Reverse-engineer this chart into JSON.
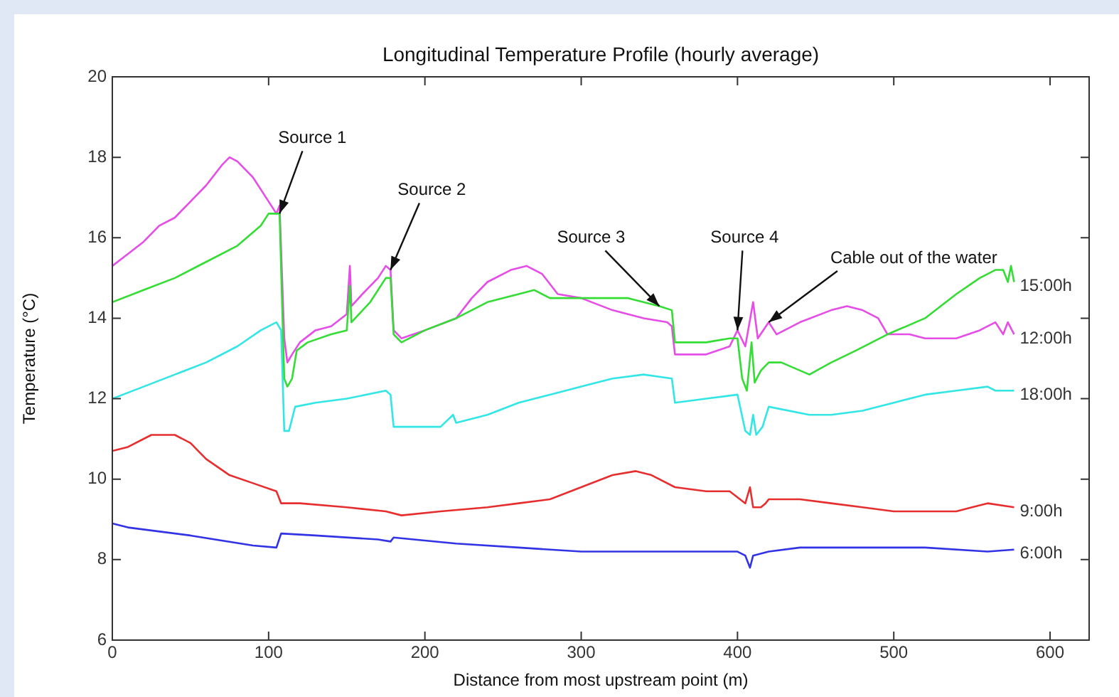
{
  "chart_data": {
    "type": "line",
    "title": "Longitudinal Temperature Profile (hourly average)",
    "xlabel": "Distance from most upstream point (m)",
    "ylabel": "Temperature (°C)",
    "xlim": [
      0,
      625
    ],
    "xticks": [
      0,
      100,
      200,
      300,
      400,
      500,
      600
    ],
    "ylim": [
      6,
      20
    ],
    "yticks": [
      6,
      8,
      10,
      12,
      14,
      16,
      18,
      20
    ],
    "grid": false,
    "legend": false,
    "marker": "none",
    "line_style": "solid",
    "series": [
      {
        "name": "15:00h",
        "color": "#33dd33",
        "x": [
          0,
          20,
          40,
          60,
          80,
          95,
          100,
          107,
          110,
          112,
          115,
          118,
          125,
          140,
          150,
          152,
          153,
          165,
          175,
          178,
          180,
          185,
          200,
          220,
          240,
          260,
          270,
          280,
          300,
          330,
          350,
          358,
          360,
          380,
          395,
          400,
          403,
          406,
          409,
          411,
          415,
          420,
          428,
          446,
          460,
          476,
          496,
          520,
          540,
          555,
          565,
          570,
          573,
          575,
          577
        ],
        "values": [
          14.4,
          14.7,
          15.0,
          15.4,
          15.8,
          16.3,
          16.6,
          16.6,
          12.5,
          12.3,
          12.5,
          13.2,
          13.4,
          13.6,
          13.7,
          14.8,
          13.9,
          14.4,
          15.0,
          15.0,
          13.6,
          13.4,
          13.7,
          14.0,
          14.4,
          14.6,
          14.7,
          14.5,
          14.5,
          14.5,
          14.3,
          14.2,
          13.4,
          13.4,
          13.5,
          13.5,
          12.5,
          12.2,
          13.4,
          12.4,
          12.7,
          12.9,
          12.9,
          12.6,
          12.9,
          13.2,
          13.6,
          14.0,
          14.6,
          15.0,
          15.2,
          15.2,
          14.9,
          15.3,
          14.9
        ]
      },
      {
        "name": "12:00h",
        "color": "#e64ce6",
        "x": [
          0,
          10,
          20,
          30,
          40,
          50,
          60,
          70,
          75,
          80,
          85,
          90,
          95,
          100,
          105,
          107,
          110,
          112,
          115,
          120,
          130,
          140,
          150,
          152,
          153,
          160,
          170,
          175,
          178,
          180,
          185,
          200,
          220,
          230,
          240,
          255,
          265,
          275,
          285,
          300,
          320,
          340,
          355,
          358,
          360,
          380,
          395,
          400,
          405,
          410,
          413,
          420,
          425,
          440,
          460,
          470,
          480,
          490,
          496,
          510,
          520,
          540,
          555,
          565,
          570,
          573,
          577
        ],
        "values": [
          15.3,
          15.6,
          15.9,
          16.3,
          16.5,
          16.9,
          17.3,
          17.8,
          18.0,
          17.9,
          17.7,
          17.5,
          17.2,
          16.9,
          16.6,
          16.8,
          13.5,
          12.9,
          13.1,
          13.4,
          13.7,
          13.8,
          14.1,
          15.3,
          14.3,
          14.6,
          15.0,
          15.3,
          15.2,
          13.7,
          13.5,
          13.7,
          14.0,
          14.5,
          14.9,
          15.2,
          15.3,
          15.1,
          14.6,
          14.5,
          14.2,
          14.0,
          13.9,
          13.8,
          13.1,
          13.1,
          13.3,
          13.7,
          13.3,
          14.4,
          13.5,
          13.9,
          13.6,
          13.9,
          14.2,
          14.3,
          14.2,
          14.0,
          13.6,
          13.6,
          13.5,
          13.5,
          13.7,
          13.9,
          13.6,
          13.9,
          13.6
        ]
      },
      {
        "name": "18:00h",
        "color": "#33e6e6",
        "x": [
          0,
          20,
          40,
          60,
          80,
          95,
          105,
          108,
          110,
          113,
          117,
          130,
          150,
          175,
          178,
          180,
          190,
          210,
          218,
          220,
          240,
          260,
          280,
          300,
          320,
          340,
          358,
          360,
          380,
          400,
          405,
          408,
          410,
          412,
          416,
          420,
          446,
          460,
          480,
          500,
          520,
          540,
          560,
          565,
          577
        ],
        "values": [
          12.0,
          12.3,
          12.6,
          12.9,
          13.3,
          13.7,
          13.9,
          13.7,
          11.2,
          11.2,
          11.8,
          11.9,
          12.0,
          12.2,
          12.1,
          11.3,
          11.3,
          11.3,
          11.6,
          11.4,
          11.6,
          11.9,
          12.1,
          12.3,
          12.5,
          12.6,
          12.5,
          11.9,
          12.0,
          12.1,
          11.2,
          11.1,
          11.6,
          11.1,
          11.3,
          11.8,
          11.6,
          11.6,
          11.7,
          11.9,
          12.1,
          12.2,
          12.3,
          12.2,
          12.2
        ]
      },
      {
        "name": "9:00h",
        "color": "#e62e2e",
        "x": [
          0,
          10,
          25,
          40,
          50,
          60,
          75,
          90,
          105,
          108,
          120,
          150,
          175,
          185,
          210,
          240,
          260,
          280,
          300,
          320,
          335,
          345,
          360,
          380,
          395,
          405,
          408,
          410,
          415,
          418,
          420,
          440,
          460,
          480,
          500,
          520,
          540,
          550,
          560,
          577
        ],
        "values": [
          10.7,
          10.8,
          11.1,
          11.1,
          10.9,
          10.5,
          10.1,
          9.9,
          9.7,
          9.4,
          9.4,
          9.3,
          9.2,
          9.1,
          9.2,
          9.3,
          9.4,
          9.5,
          9.8,
          10.1,
          10.2,
          10.1,
          9.8,
          9.7,
          9.7,
          9.4,
          9.8,
          9.3,
          9.3,
          9.4,
          9.5,
          9.5,
          9.4,
          9.3,
          9.2,
          9.2,
          9.2,
          9.3,
          9.4,
          9.3
        ]
      },
      {
        "name": "6:00h",
        "color": "#3333e6",
        "x": [
          0,
          5,
          10,
          50,
          90,
          105,
          108,
          130,
          170,
          178,
          180,
          220,
          260,
          300,
          350,
          400,
          405,
          408,
          410,
          420,
          440,
          480,
          520,
          560,
          577
        ],
        "values": [
          8.9,
          8.85,
          8.8,
          8.6,
          8.35,
          8.3,
          8.65,
          8.6,
          8.5,
          8.45,
          8.55,
          8.4,
          8.3,
          8.2,
          8.2,
          8.2,
          8.1,
          7.8,
          8.1,
          8.2,
          8.3,
          8.3,
          8.3,
          8.2,
          8.25
        ]
      }
    ],
    "annotations": [
      {
        "text": "Source 1",
        "x": 107,
        "y": 16.6
      },
      {
        "text": "Source 2",
        "x": 178,
        "y": 15.2
      },
      {
        "text": "Source 3",
        "x": 350,
        "y": 14.3
      },
      {
        "text": "Source 4",
        "x": 400,
        "y": 13.7
      },
      {
        "text": "Cable out of the water",
        "x": 420,
        "y": 13.9
      }
    ]
  }
}
